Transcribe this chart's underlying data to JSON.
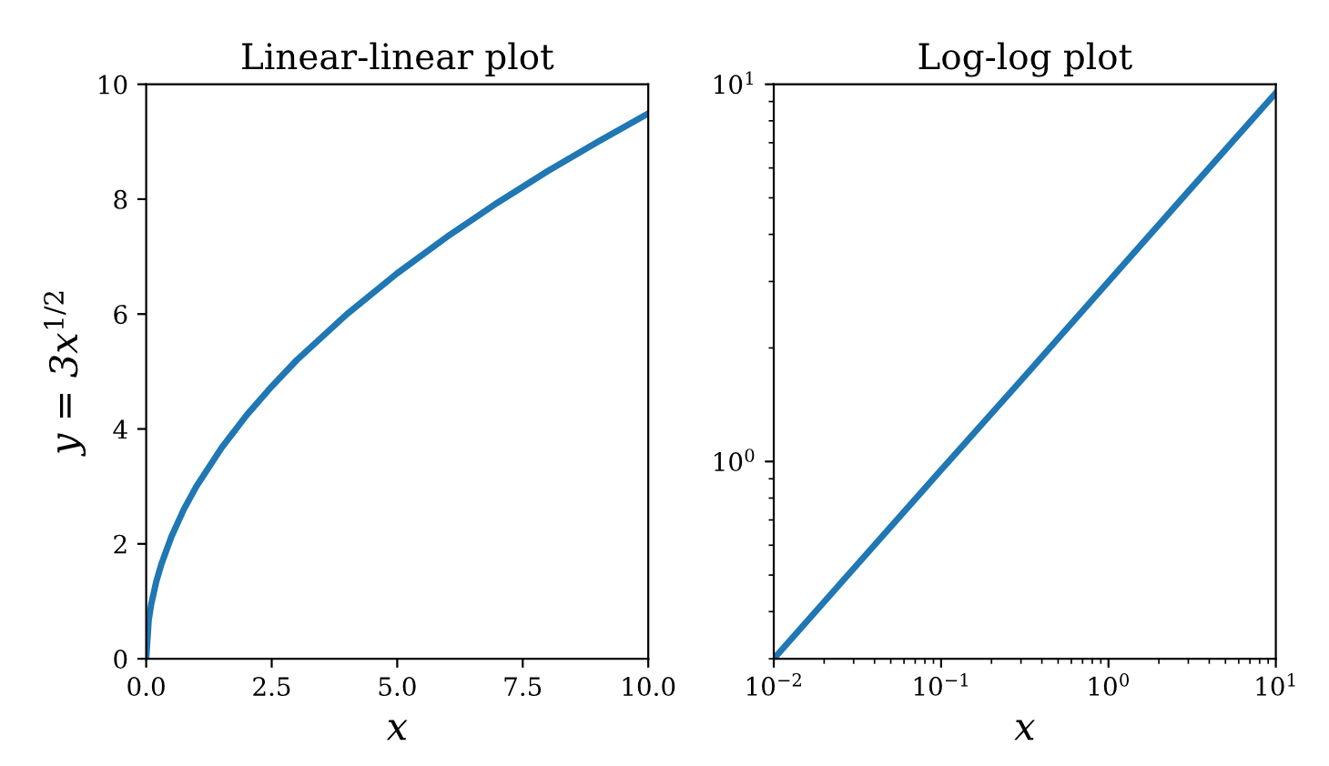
{
  "chart_data": [
    {
      "type": "line",
      "title": "Linear-linear plot",
      "xlabel": "x",
      "ylabel": "y = 3x$^{1/2}$",
      "series": [
        {
          "color": "#1f77b4",
          "x": [
            0,
            0.05,
            0.1,
            0.2,
            0.3,
            0.5,
            0.75,
            1,
            1.5,
            2,
            2.5,
            3,
            4,
            5,
            6,
            7,
            8,
            9,
            10
          ],
          "values": [
            0,
            0.67,
            0.95,
            1.34,
            1.64,
            2.12,
            2.6,
            3,
            3.67,
            4.24,
            4.74,
            5.2,
            6,
            6.71,
            7.35,
            7.94,
            8.49,
            9,
            9.49
          ]
        }
      ],
      "xlim": [
        0,
        10
      ],
      "ylim": [
        0,
        10
      ],
      "xticks": [
        {
          "value": 0,
          "label": "0.0"
        },
        2.5,
        {
          "value": 5,
          "label": "5.0"
        },
        7.5,
        {
          "value": 10,
          "label": "10.0"
        }
      ],
      "yticks": [
        0,
        2,
        4,
        6,
        8,
        10
      ],
      "grid": false,
      "legend": false
    },
    {
      "type": "line",
      "title": "Log-log plot",
      "xlabel": "x",
      "log": "xy",
      "series": [
        {
          "color": "#1f77b4",
          "x": [
            0.01,
            0.03,
            0.1,
            0.3,
            1,
            3,
            10
          ],
          "values": [
            0.3,
            0.52,
            0.95,
            1.64,
            3,
            5.2,
            9.49
          ]
        }
      ],
      "xlim": [
        0.01,
        10
      ],
      "ylim": [
        0.3,
        10
      ],
      "xticks": [
        {
          "value": 0.01,
          "label": "10$^{−2}$"
        },
        {
          "value": 0.1,
          "label": "10$^{−1}$"
        },
        {
          "value": 1,
          "label": "10$^{0}$"
        },
        {
          "value": 10,
          "label": "10$^{1}$"
        }
      ],
      "yticks": [
        {
          "value": 1,
          "label": "10$^{0}$"
        },
        {
          "value": 10,
          "label": "10$^{1}$"
        }
      ],
      "grid": false,
      "legend": false
    }
  ]
}
